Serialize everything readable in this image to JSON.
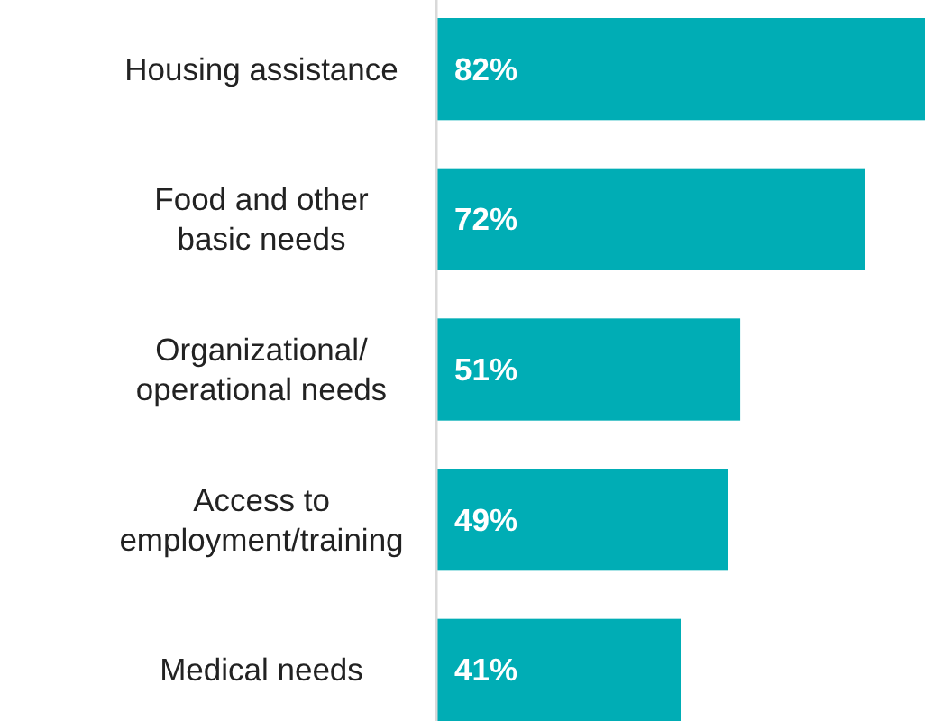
{
  "chart_data": {
    "type": "bar",
    "orientation": "horizontal",
    "categories": [
      "Housing assistance",
      "Food and other\nbasic needs",
      "Organizational/\noperational needs",
      "Access to\nemployment/training",
      "Medical needs"
    ],
    "values": [
      82,
      72,
      51,
      49,
      41
    ],
    "color": "#00adb5",
    "value_labels": [
      "82%",
      "72%",
      "51%",
      "49%",
      "41%"
    ]
  }
}
